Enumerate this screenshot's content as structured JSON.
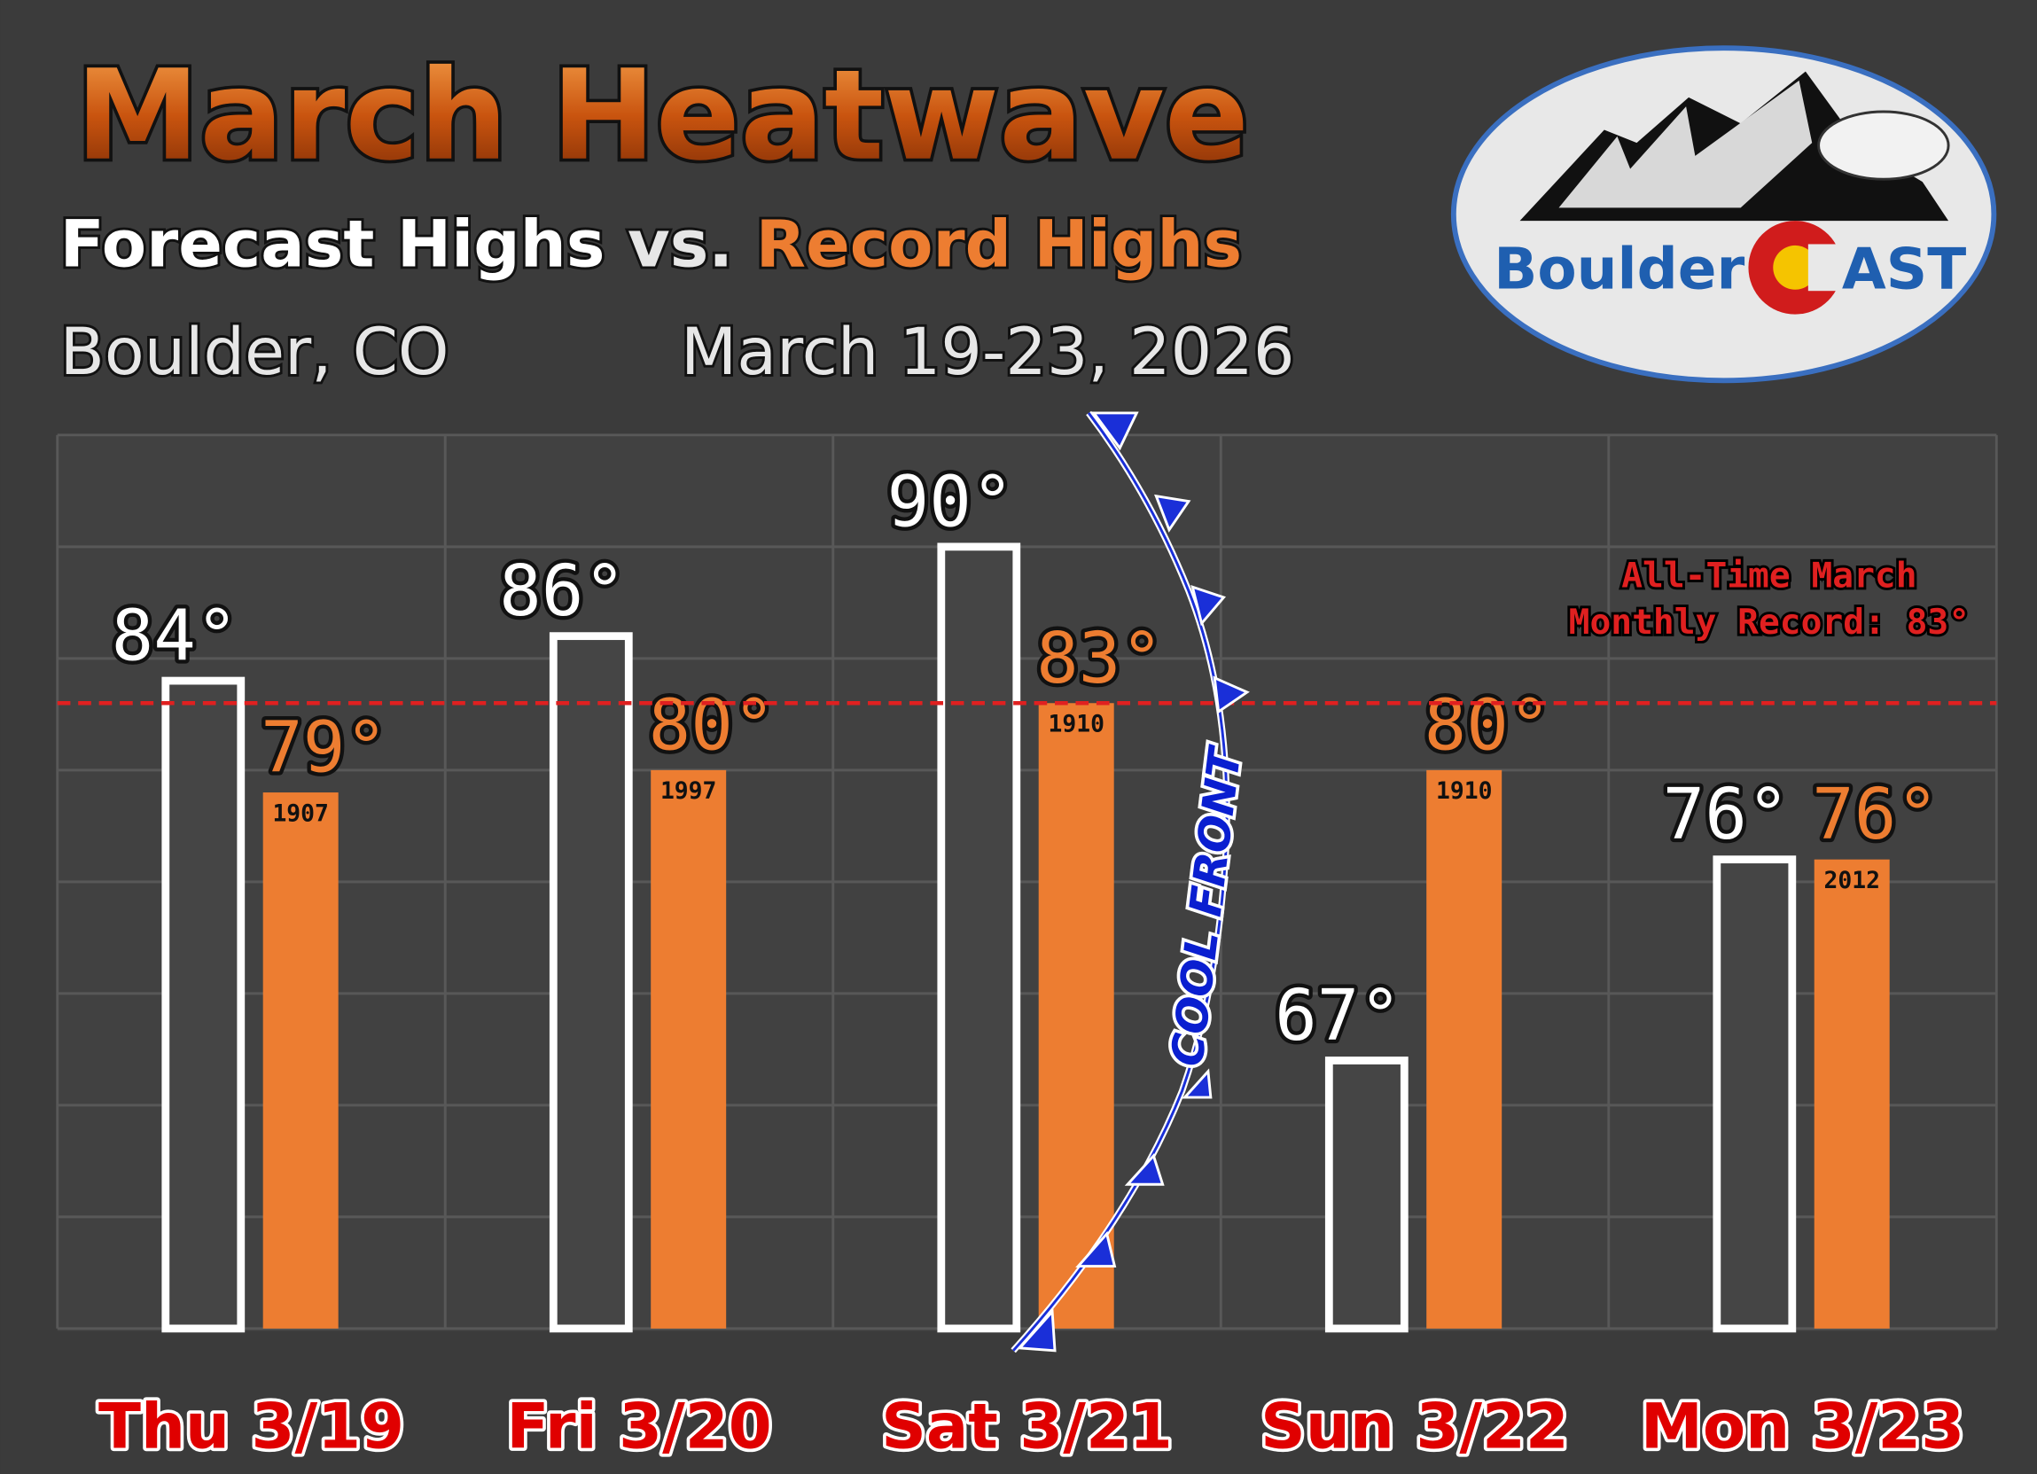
{
  "chart_data": {
    "type": "bar",
    "title": "March Heatwave",
    "subtitle_joiner": "vs.",
    "location": "Boulder, CO",
    "date_range": "March 19-23, 2026",
    "categories": [
      "Thu 3/19",
      "Fri 3/20",
      "Sat 3/21",
      "Sun 3/22",
      "Mon 3/23"
    ],
    "series": [
      {
        "name": "Forecast Highs",
        "color": "#454545",
        "outline": "#ffffff",
        "label_color": "#ffffff",
        "values": [
          84,
          86,
          90,
          67,
          76
        ],
        "value_labels": [
          "84°",
          "86°",
          "90°",
          "67°",
          "76°"
        ]
      },
      {
        "name": "Record Highs",
        "color": "#ed7d31",
        "label_color": "#ed7d31",
        "values": [
          79,
          80,
          83,
          80,
          76
        ],
        "value_labels": [
          "79°",
          "80°",
          "83°",
          "80°",
          "76°"
        ],
        "record_years": [
          "1907",
          "1997",
          "1910",
          "1910",
          "2012"
        ]
      }
    ],
    "ylim": [
      55,
      95
    ],
    "yticks": [
      55,
      60,
      65,
      70,
      75,
      80,
      85,
      90,
      95
    ],
    "grid": true,
    "reference_line": {
      "value": 83,
      "color": "#e02020",
      "label_lines": [
        "All-Time March",
        "Monthly Record: 83°"
      ]
    },
    "annotation": "COOL FRONT",
    "logo": {
      "left": "Boulder",
      "right": "AST"
    }
  }
}
